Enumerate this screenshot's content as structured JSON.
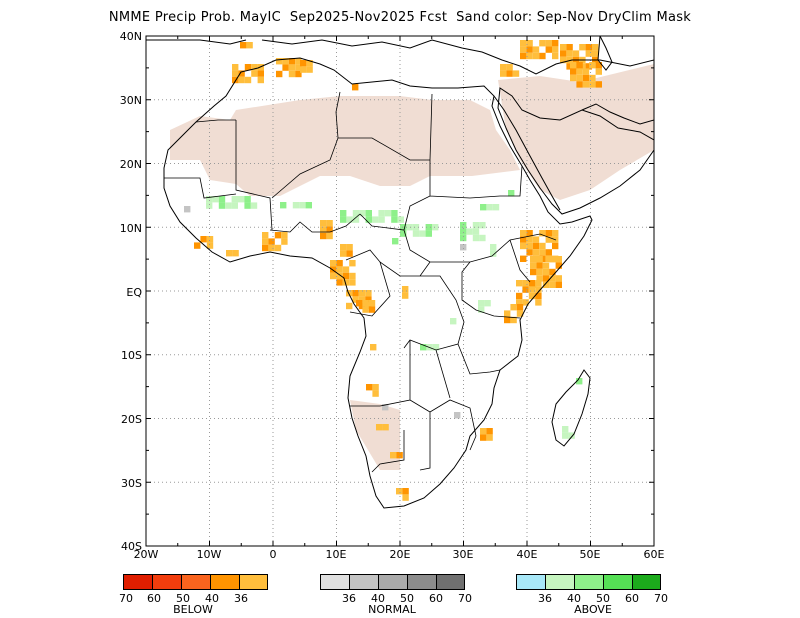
{
  "title": "NMME Precip Prob. MayIC  Sep2025-Nov2025 Fcst  Sand color: Sep-Nov DryClim Mask",
  "map": {
    "lon_range": [
      -20,
      60
    ],
    "lat_range": [
      -40,
      40
    ],
    "lat_labels": [
      "40N",
      "30N",
      "20N",
      "10N",
      "EQ",
      "10S",
      "20S",
      "30S",
      "40S"
    ],
    "lon_labels": [
      "20W",
      "10W",
      "0",
      "10E",
      "20E",
      "30E",
      "40E",
      "50E",
      "60E"
    ],
    "colors": {
      "land": "#ffffff",
      "dry_mask": "#f0ddd3",
      "below": [
        "#e01e00",
        "#f23d0d",
        "#fa641e",
        "#ff9400",
        "#ffbe3c"
      ],
      "normal": [
        "#e0e0e0",
        "#c4c4c4",
        "#aaaaaa",
        "#8c8c8c",
        "#707070"
      ],
      "above": [
        "#a8e8f8",
        "#c6f5c0",
        "#8ef08a",
        "#55e055",
        "#1cab1c"
      ]
    }
  },
  "legend": {
    "below": {
      "label": "BELOW",
      "ticks": [
        "70",
        "60",
        "50",
        "40",
        "36"
      ]
    },
    "normal": {
      "label": "NORMAL",
      "ticks": [
        "36",
        "40",
        "50",
        "60",
        "70"
      ]
    },
    "above": {
      "label": "ABOVE",
      "ticks": [
        "36",
        "40",
        "50",
        "60",
        "70"
      ]
    }
  }
}
